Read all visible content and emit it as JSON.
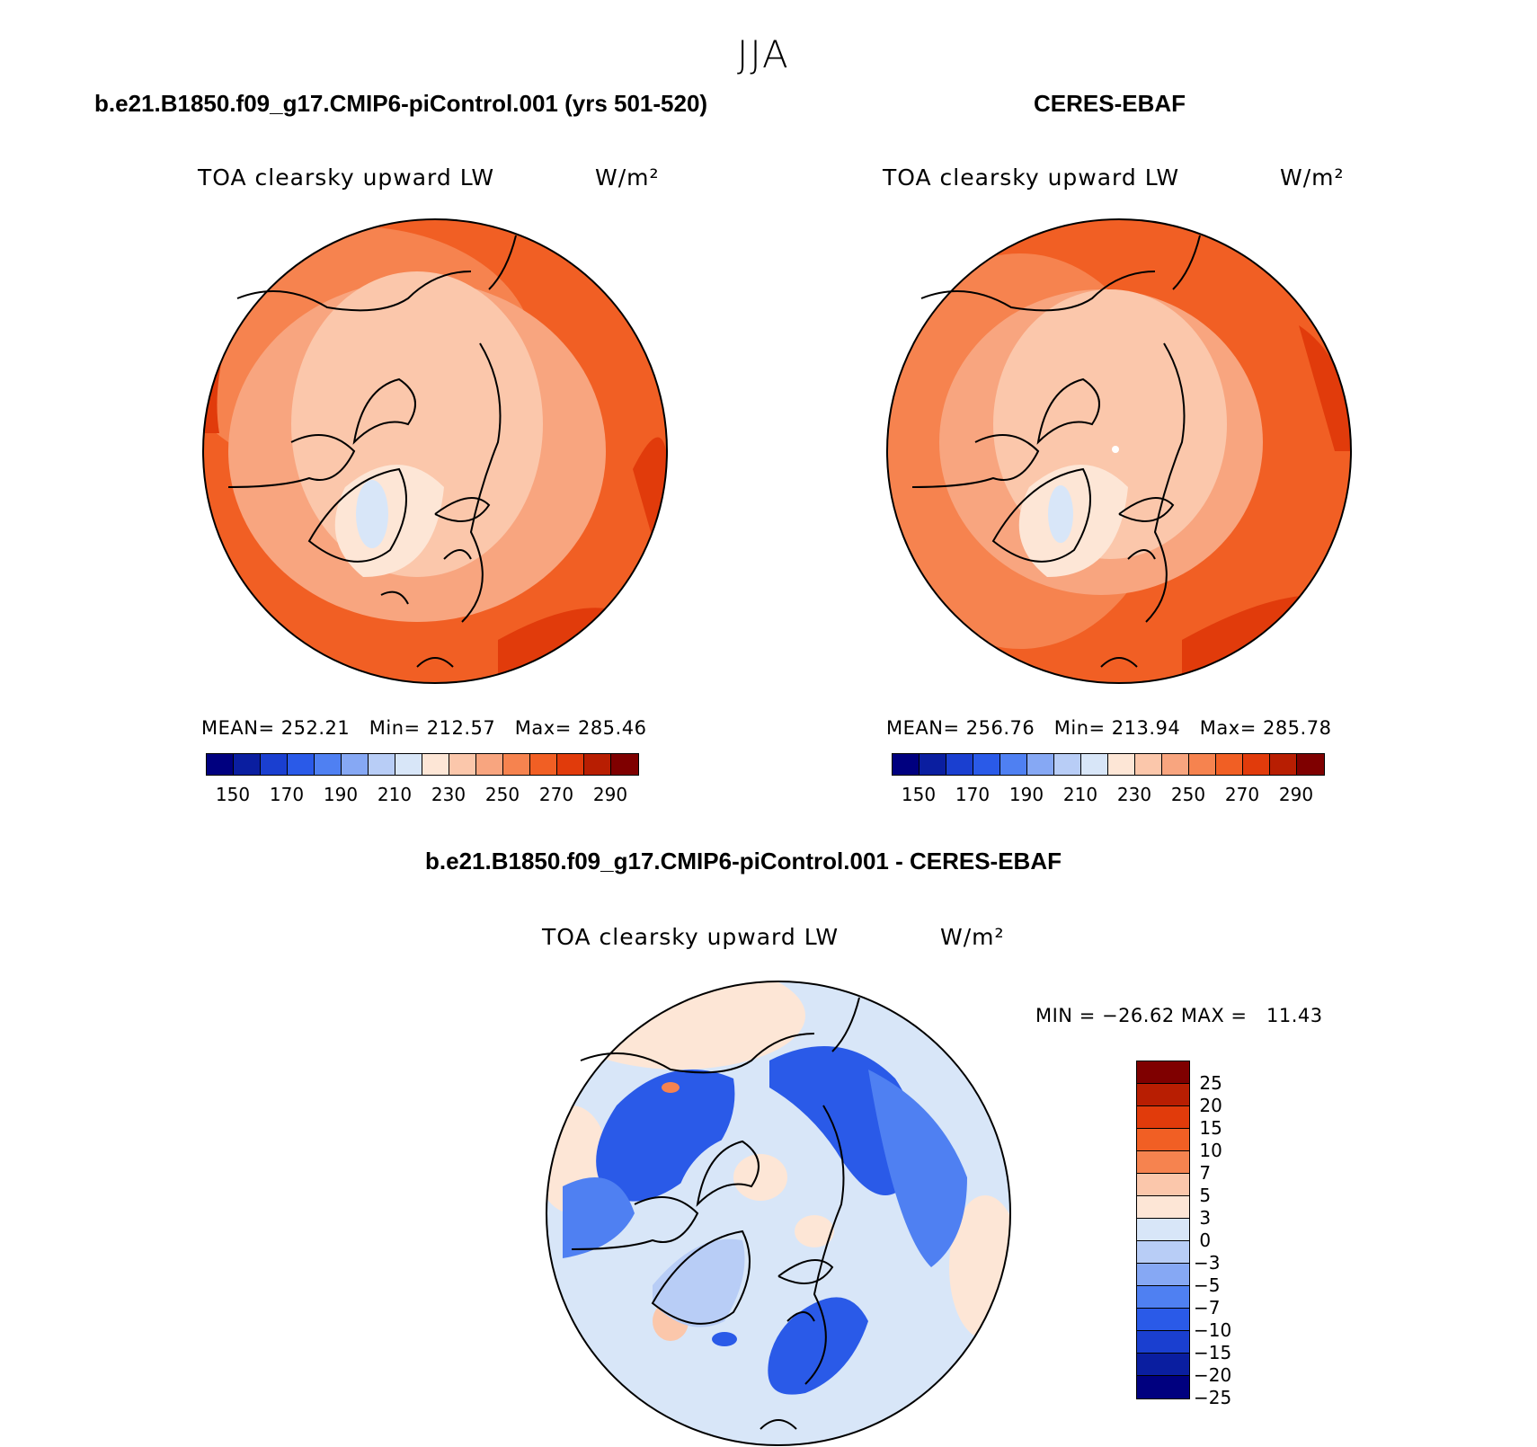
{
  "season": "JJA",
  "panels": [
    {
      "title": "b.e21.B1850.f09_g17.CMIP6-piControl.001 (yrs 501-520)",
      "variable": "TOA clearsky upward LW",
      "units": "W/m²",
      "stats": "MEAN= 252.21   Min= 212.57   Max= 285.46"
    },
    {
      "title": "CERES-EBAF",
      "variable": "TOA clearsky upward LW",
      "units": "W/m²",
      "stats": "MEAN= 256.76   Min= 213.94   Max= 285.78"
    }
  ],
  "diff_panel": {
    "title": "b.e21.B1850.f09_g17.CMIP6-piControl.001 - CERES-EBAF",
    "variable": "TOA clearsky upward LW",
    "units": "W/m²",
    "stats": "MIN = −26.62 MAX =   11.43"
  },
  "abs_colorbar": {
    "colors": [
      "#00007f",
      "#0a1ea0",
      "#1a3fd0",
      "#2a5ae8",
      "#4f80f2",
      "#86a8f4",
      "#b8cdf6",
      "#d8e6f8",
      "#fde6d6",
      "#fbc7ab",
      "#f8a57f",
      "#f6834f",
      "#f15f24",
      "#e13b0b",
      "#b81e02",
      "#7f0000"
    ],
    "labels": [
      "150",
      "170",
      "190",
      "210",
      "230",
      "250",
      "270",
      "290"
    ]
  },
  "diff_colorbar": {
    "colors": [
      "#7f0000",
      "#b81e02",
      "#e13b0b",
      "#f15f24",
      "#f6834f",
      "#fbc7ab",
      "#fde6d6",
      "#d8e6f8",
      "#b8cdf6",
      "#86a8f4",
      "#4f80f2",
      "#2a5ae8",
      "#1a3fd0",
      "#0a1ea0",
      "#00007f"
    ],
    "labels": [
      "25",
      "20",
      "15",
      "10",
      "7",
      "5",
      "3",
      "0",
      "−3",
      "−5",
      "−7",
      "−10",
      "−15",
      "−20",
      "−25"
    ]
  }
}
